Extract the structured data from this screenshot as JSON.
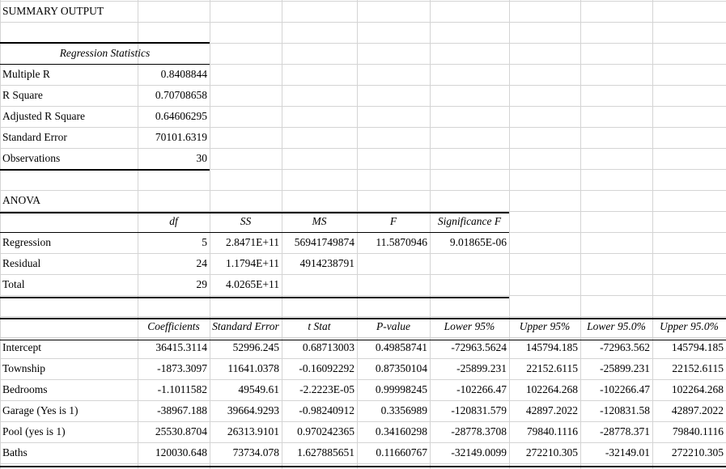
{
  "title": "SUMMARY OUTPUT",
  "regression_statistics": {
    "header": "Regression Statistics",
    "rows": [
      {
        "label": "Multiple R",
        "value": "0.8408844"
      },
      {
        "label": "R Square",
        "value": "0.70708658"
      },
      {
        "label": "Adjusted R Square",
        "value": "0.64606295"
      },
      {
        "label": "Standard Error",
        "value": "70101.6319"
      },
      {
        "label": "Observations",
        "value": "30"
      }
    ]
  },
  "anova": {
    "title": "ANOVA",
    "headers": [
      "df",
      "SS",
      "MS",
      "F",
      "Significance F"
    ],
    "rows": [
      {
        "label": "Regression",
        "cells": [
          "5",
          "2.8471E+11",
          "56941749874",
          "11.5870946",
          "9.01865E-06"
        ]
      },
      {
        "label": "Residual",
        "cells": [
          "24",
          "1.1794E+11",
          "4914238791",
          "",
          ""
        ]
      },
      {
        "label": "Total",
        "cells": [
          "29",
          "4.0265E+11",
          "",
          "",
          ""
        ]
      }
    ]
  },
  "coefficients": {
    "headers": [
      "Coefficients",
      "Standard Error",
      "t Stat",
      "P-value",
      "Lower 95%",
      "Upper 95%",
      "Lower 95.0%",
      "Upper 95.0%"
    ],
    "rows": [
      {
        "label": "Intercept",
        "cells": [
          "36415.3114",
          "52996.245",
          "0.68713003",
          "0.49858741",
          "-72963.5624",
          "145794.185",
          "-72963.562",
          "145794.185"
        ]
      },
      {
        "label": "Township",
        "cells": [
          "-1873.3097",
          "11641.0378",
          "-0.16092292",
          "0.87350104",
          "-25899.231",
          "22152.6115",
          "-25899.231",
          "22152.6115"
        ]
      },
      {
        "label": "Bedrooms",
        "cells": [
          "-1.1011582",
          "49549.61",
          "-2.2223E-05",
          "0.99998245",
          "-102266.47",
          "102264.268",
          "-102266.47",
          "102264.268"
        ]
      },
      {
        "label": "Garage (Yes is 1)",
        "cells": [
          "-38967.188",
          "39664.9293",
          "-0.98240912",
          "0.3356989",
          "-120831.579",
          "42897.2022",
          "-120831.58",
          "42897.2022"
        ]
      },
      {
        "label": "Pool (yes is 1)",
        "cells": [
          "25530.8704",
          "26313.9101",
          "0.970242365",
          "0.34160298",
          "-28778.3708",
          "79840.1116",
          "-28778.371",
          "79840.1116"
        ]
      },
      {
        "label": "Baths",
        "cells": [
          "120030.648",
          "73734.078",
          "1.627885651",
          "0.11660767",
          "-32149.0099",
          "272210.305",
          "-32149.01",
          "272210.305"
        ]
      }
    ]
  }
}
